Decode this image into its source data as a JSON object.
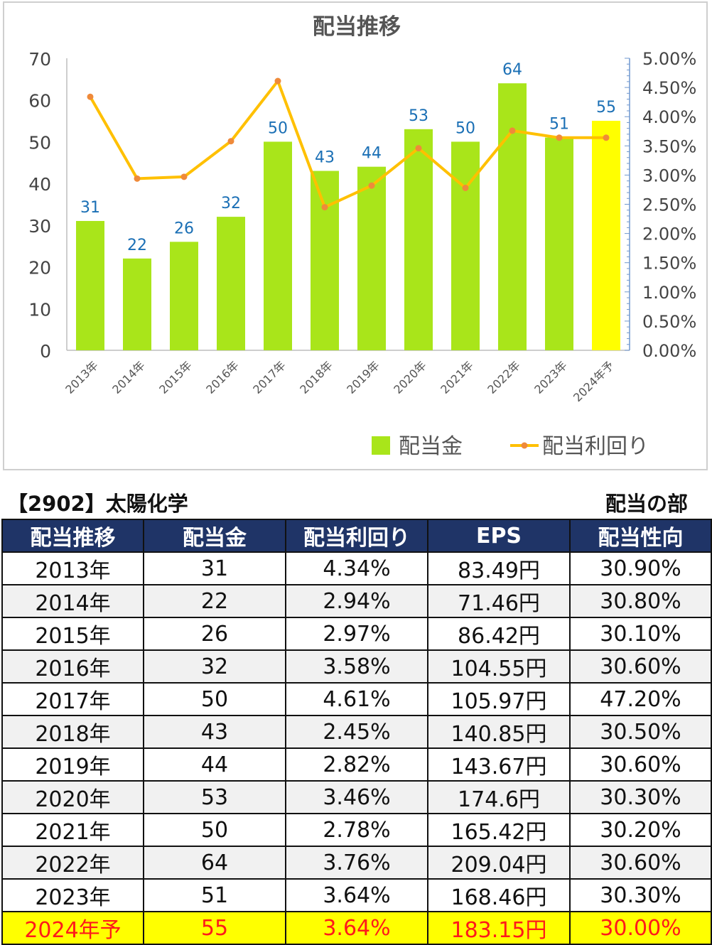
{
  "chart_data": {
    "type": "bar+line",
    "title": "配当推移",
    "categories": [
      "2013年",
      "2014年",
      "2015年",
      "2016年",
      "2017年",
      "2018年",
      "2019年",
      "2020年",
      "2021年",
      "2022年",
      "2023年",
      "2024年予"
    ],
    "series": [
      {
        "name": "配当金",
        "type": "bar",
        "axis": "left",
        "values": [
          31,
          22,
          26,
          32,
          50,
          43,
          44,
          53,
          50,
          64,
          51,
          55
        ]
      },
      {
        "name": "配当利回り",
        "type": "line",
        "axis": "right",
        "values": [
          4.34,
          2.94,
          2.97,
          3.58,
          4.61,
          2.45,
          2.82,
          3.46,
          2.78,
          3.76,
          3.64,
          3.64
        ]
      }
    ],
    "data_labels": [
      "31",
      "22",
      "26",
      "32",
      "50",
      "43",
      "44",
      "53",
      "50",
      "64",
      "51",
      "55"
    ],
    "y_left": {
      "min": 0,
      "max": 70,
      "ticks": [
        "0",
        "10",
        "20",
        "30",
        "40",
        "50",
        "60",
        "70"
      ]
    },
    "y_right": {
      "min": 0,
      "max": 5,
      "ticks": [
        "0.00%",
        "0.50%",
        "1.00%",
        "1.50%",
        "2.00%",
        "2.50%",
        "3.00%",
        "3.50%",
        "4.00%",
        "4.50%",
        "5.00%"
      ]
    },
    "legend_placement": "bottom-right",
    "colors": {
      "bar": "#a9e51a",
      "bar_highlight": "#ffff00",
      "line": "#ffc000",
      "marker": "#ef8a3a",
      "data_label": "#1a6fb5",
      "tick_label": "#444444"
    }
  },
  "caption_left": "【2902】太陽化学",
  "caption_right": "配当の部",
  "table": {
    "headers": [
      "配当推移",
      "配当金",
      "配当利回り",
      "EPS",
      "配当性向"
    ],
    "rows": [
      [
        "2013年",
        "31",
        "4.34%",
        "83.49円",
        "30.90%"
      ],
      [
        "2014年",
        "22",
        "2.94%",
        "71.46円",
        "30.80%"
      ],
      [
        "2015年",
        "26",
        "2.97%",
        "86.42円",
        "30.10%"
      ],
      [
        "2016年",
        "32",
        "3.58%",
        "104.55円",
        "30.60%"
      ],
      [
        "2017年",
        "50",
        "4.61%",
        "105.97円",
        "47.20%"
      ],
      [
        "2018年",
        "43",
        "2.45%",
        "140.85円",
        "30.50%"
      ],
      [
        "2019年",
        "44",
        "2.82%",
        "143.67円",
        "30.60%"
      ],
      [
        "2020年",
        "53",
        "3.46%",
        "174.6円",
        "30.30%"
      ],
      [
        "2021年",
        "50",
        "2.78%",
        "165.42円",
        "30.20%"
      ],
      [
        "2022年",
        "64",
        "3.76%",
        "209.04円",
        "30.60%"
      ],
      [
        "2023年",
        "51",
        "3.64%",
        "168.46円",
        "30.30%"
      ],
      [
        "2024年予",
        "55",
        "3.64%",
        "183.15円",
        "30.00%"
      ]
    ],
    "highlight_color": "#ffff00",
    "highlight_text_color": "#ff1a1a",
    "header_color": "#1f3467"
  }
}
